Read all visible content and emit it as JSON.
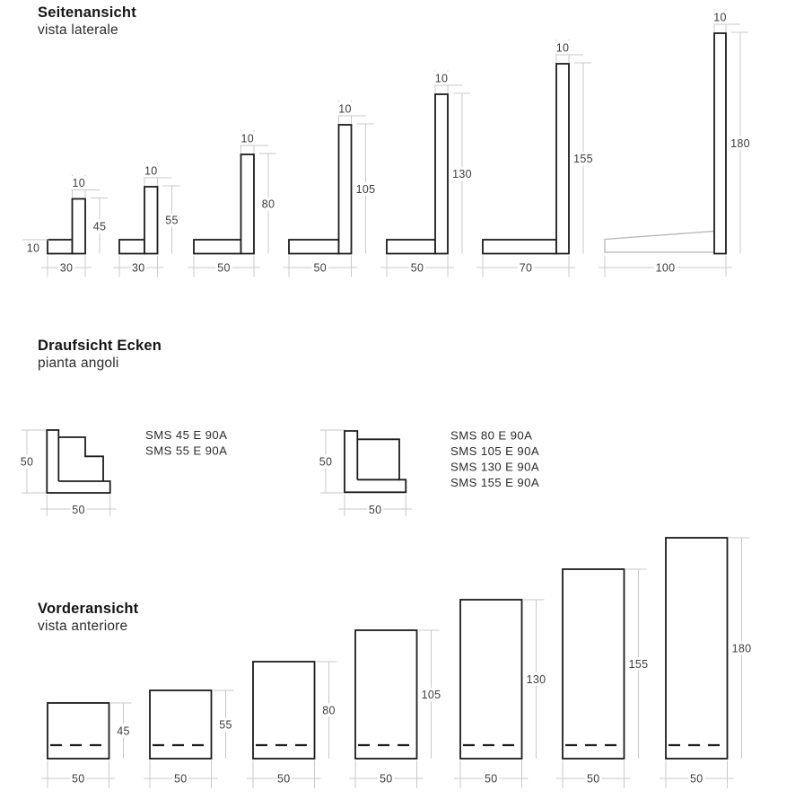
{
  "sections": {
    "side_view": {
      "title": "Seitenansicht",
      "subtitle": "vista laterale"
    },
    "corner_plan": {
      "title": "Draufsicht Ecken",
      "subtitle": "pianta angoli"
    },
    "front_view": {
      "title": "Vorderansicht",
      "subtitle": "vista anteriore"
    }
  },
  "side_flange_thickness": "10",
  "side_profiles": [
    {
      "base_width": "30",
      "height": "45",
      "top_thickness": "10"
    },
    {
      "base_width": "30",
      "height": "55",
      "top_thickness": "10"
    },
    {
      "base_width": "50",
      "height": "80",
      "top_thickness": "10"
    },
    {
      "base_width": "50",
      "height": "105",
      "top_thickness": "10"
    },
    {
      "base_width": "50",
      "height": "130",
      "top_thickness": "10"
    },
    {
      "base_width": "70",
      "height": "155",
      "top_thickness": "10"
    },
    {
      "base_width": "100",
      "height": "180",
      "top_thickness": "10"
    }
  ],
  "corner_details": [
    {
      "height_dim": "50",
      "width_dim": "50",
      "codes": [
        "SMS 45 E 90A",
        "SMS 55 E 90A"
      ]
    },
    {
      "height_dim": "50",
      "width_dim": "50",
      "codes": [
        "SMS 80 E 90A",
        "SMS 105 E 90A",
        "SMS 130 E 90A",
        "SMS 155 E 90A"
      ]
    }
  ],
  "front_profiles": [
    {
      "width": "50",
      "height": "45"
    },
    {
      "width": "50",
      "height": "55"
    },
    {
      "width": "50",
      "height": "80"
    },
    {
      "width": "50",
      "height": "105"
    },
    {
      "width": "50",
      "height": "130"
    },
    {
      "width": "50",
      "height": "155"
    },
    {
      "width": "50",
      "height": "180"
    }
  ],
  "colors": {
    "outline": "#1c1c1c",
    "light_outline": "#b5b5b5",
    "dimension": "#c9c9c9",
    "label": "#3d3d3d",
    "code_text": "#2c2c2c",
    "background": "#ffffff"
  }
}
